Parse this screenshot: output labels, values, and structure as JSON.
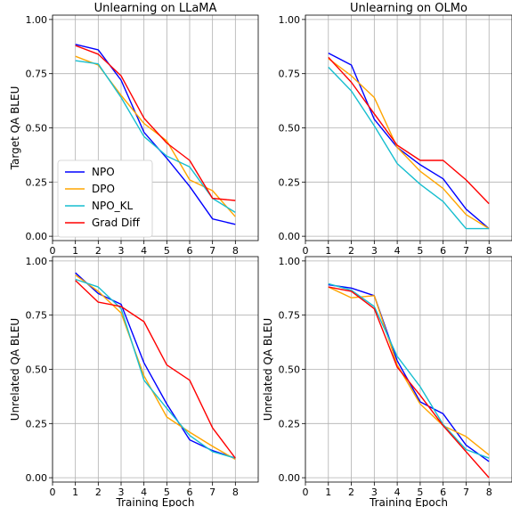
{
  "colors": {
    "NPO": "#0000ff",
    "DPO": "#ffa500",
    "NPO_KL": "#17becf",
    "Grad Diff": "#ff0000"
  },
  "chart_data": [
    {
      "type": "line",
      "title": "Unlearning on LLaMA",
      "ylabel": "Target QA BLEU",
      "xlabel": "",
      "xlim": [
        0,
        9
      ],
      "ylim": [
        -0.02,
        1.02
      ],
      "xticks": [
        "0",
        "1",
        "2",
        "3",
        "4",
        "5",
        "6",
        "7",
        "8"
      ],
      "yticks": [
        "0.00",
        "0.25",
        "0.50",
        "0.75",
        "1.00"
      ],
      "grid": true,
      "legend": "lower-left",
      "x": [
        1,
        2,
        3,
        4,
        5,
        6,
        7,
        8
      ],
      "series": [
        {
          "name": "NPO",
          "values": [
            0.885,
            0.86,
            0.72,
            0.48,
            0.36,
            0.23,
            0.08,
            0.055
          ]
        },
        {
          "name": "DPO",
          "values": [
            0.83,
            0.79,
            0.65,
            0.52,
            0.44,
            0.26,
            0.21,
            0.09
          ]
        },
        {
          "name": "NPO_KL",
          "values": [
            0.81,
            0.795,
            0.64,
            0.46,
            0.37,
            0.32,
            0.175,
            0.11
          ]
        },
        {
          "name": "Grad Diff",
          "values": [
            0.88,
            0.84,
            0.74,
            0.545,
            0.43,
            0.35,
            0.175,
            0.165
          ]
        }
      ]
    },
    {
      "type": "line",
      "title": "Unlearning on OLMo",
      "ylabel": "",
      "xlabel": "",
      "xlim": [
        0,
        9
      ],
      "ylim": [
        -0.02,
        1.02
      ],
      "xticks": [
        "0",
        "1",
        "2",
        "3",
        "4",
        "5",
        "6",
        "7",
        "8"
      ],
      "yticks": [
        "0.00",
        "0.25",
        "0.50",
        "0.75",
        "1.00"
      ],
      "grid": true,
      "legend": "",
      "x": [
        1,
        2,
        3,
        4,
        5,
        6,
        7,
        8
      ],
      "series": [
        {
          "name": "NPO",
          "values": [
            0.845,
            0.79,
            0.54,
            0.41,
            0.33,
            0.265,
            0.125,
            0.035
          ]
        },
        {
          "name": "DPO",
          "values": [
            0.82,
            0.74,
            0.64,
            0.41,
            0.3,
            0.22,
            0.1,
            0.035
          ]
        },
        {
          "name": "NPO_KL",
          "values": [
            0.78,
            0.67,
            0.51,
            0.335,
            0.24,
            0.16,
            0.035,
            0.035
          ]
        },
        {
          "name": "Grad Diff",
          "values": [
            0.825,
            0.71,
            0.565,
            0.42,
            0.35,
            0.35,
            0.26,
            0.15
          ]
        }
      ]
    },
    {
      "type": "line",
      "title": "",
      "ylabel": "Unrelated QA BLEU",
      "xlabel": "Training Epoch",
      "xlim": [
        0,
        9
      ],
      "ylim": [
        -0.02,
        1.02
      ],
      "xticks": [
        "0",
        "1",
        "2",
        "3",
        "4",
        "5",
        "6",
        "7",
        "8"
      ],
      "yticks": [
        "0.00",
        "0.25",
        "0.50",
        "0.75",
        "1.00"
      ],
      "grid": true,
      "legend": "",
      "x": [
        1,
        2,
        3,
        4,
        5,
        6,
        7,
        8
      ],
      "series": [
        {
          "name": "NPO",
          "values": [
            0.945,
            0.85,
            0.8,
            0.53,
            0.34,
            0.175,
            0.125,
            0.09
          ]
        },
        {
          "name": "DPO",
          "values": [
            0.935,
            0.86,
            0.76,
            0.47,
            0.28,
            0.21,
            0.145,
            0.085
          ]
        },
        {
          "name": "NPO_KL",
          "values": [
            0.915,
            0.88,
            0.78,
            0.45,
            0.32,
            0.195,
            0.12,
            0.09
          ]
        },
        {
          "name": "Grad Diff",
          "values": [
            0.91,
            0.81,
            0.79,
            0.72,
            0.52,
            0.45,
            0.23,
            0.09
          ]
        }
      ]
    },
    {
      "type": "line",
      "title": "",
      "ylabel": "Unrelated QA BLEU",
      "xlabel": "Training Epoch",
      "xlim": [
        0,
        9
      ],
      "ylim": [
        -0.02,
        1.02
      ],
      "xticks": [
        "0",
        "1",
        "2",
        "3",
        "4",
        "5",
        "6",
        "7",
        "8"
      ],
      "yticks": [
        "0.00",
        "0.25",
        "0.50",
        "0.75",
        "1.00"
      ],
      "grid": true,
      "legend": "",
      "x": [
        1,
        2,
        3,
        4,
        5,
        6,
        7,
        8
      ],
      "series": [
        {
          "name": "NPO",
          "values": [
            0.89,
            0.875,
            0.84,
            0.54,
            0.35,
            0.295,
            0.15,
            0.075
          ]
        },
        {
          "name": "DPO",
          "values": [
            0.88,
            0.83,
            0.84,
            0.52,
            0.34,
            0.24,
            0.19,
            0.105
          ]
        },
        {
          "name": "NPO_KL",
          "values": [
            0.895,
            0.865,
            0.79,
            0.56,
            0.42,
            0.245,
            0.13,
            0.09
          ]
        },
        {
          "name": "Grad Diff",
          "values": [
            0.88,
            0.86,
            0.78,
            0.51,
            0.38,
            0.24,
            0.12,
            0.0
          ]
        }
      ]
    }
  ]
}
